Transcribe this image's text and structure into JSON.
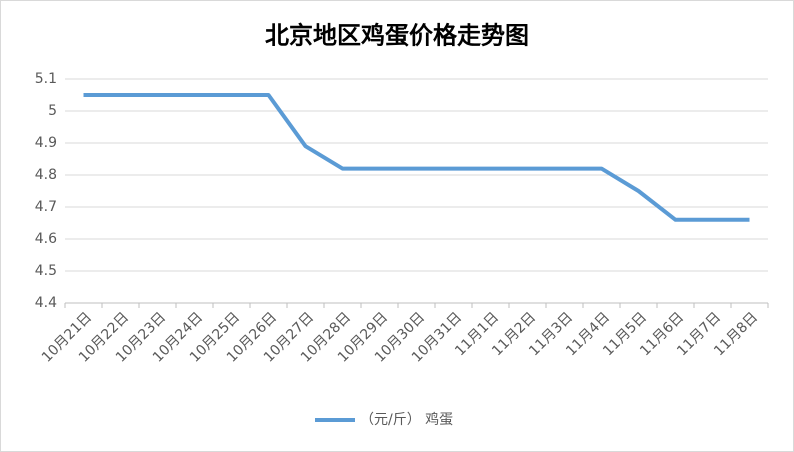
{
  "chart_data": {
    "type": "line",
    "title": "北京地区鸡蛋价格走势图",
    "categories": [
      "10月21日",
      "10月22日",
      "10月23日",
      "10月24日",
      "10月25日",
      "10月26日",
      "10月27日",
      "10月28日",
      "10月29日",
      "10月30日",
      "10月31日",
      "11月1日",
      "11月2日",
      "11月3日",
      "11月4日",
      "11月5日",
      "11月6日",
      "11月7日",
      "11月8日"
    ],
    "series": [
      {
        "name": "（元/斤） 鸡蛋",
        "color": "#5b9bd5",
        "values": [
          5.05,
          5.05,
          5.05,
          5.05,
          5.05,
          5.05,
          4.89,
          4.82,
          4.82,
          4.82,
          4.82,
          4.82,
          4.82,
          4.82,
          4.82,
          4.75,
          4.66,
          4.66,
          4.66
        ]
      }
    ],
    "ylim": [
      4.4,
      5.1
    ],
    "yticks": [
      4.4,
      4.5,
      4.6,
      4.7,
      4.8,
      4.9,
      5,
      5.1
    ],
    "grid": true,
    "legend": "bottom"
  }
}
